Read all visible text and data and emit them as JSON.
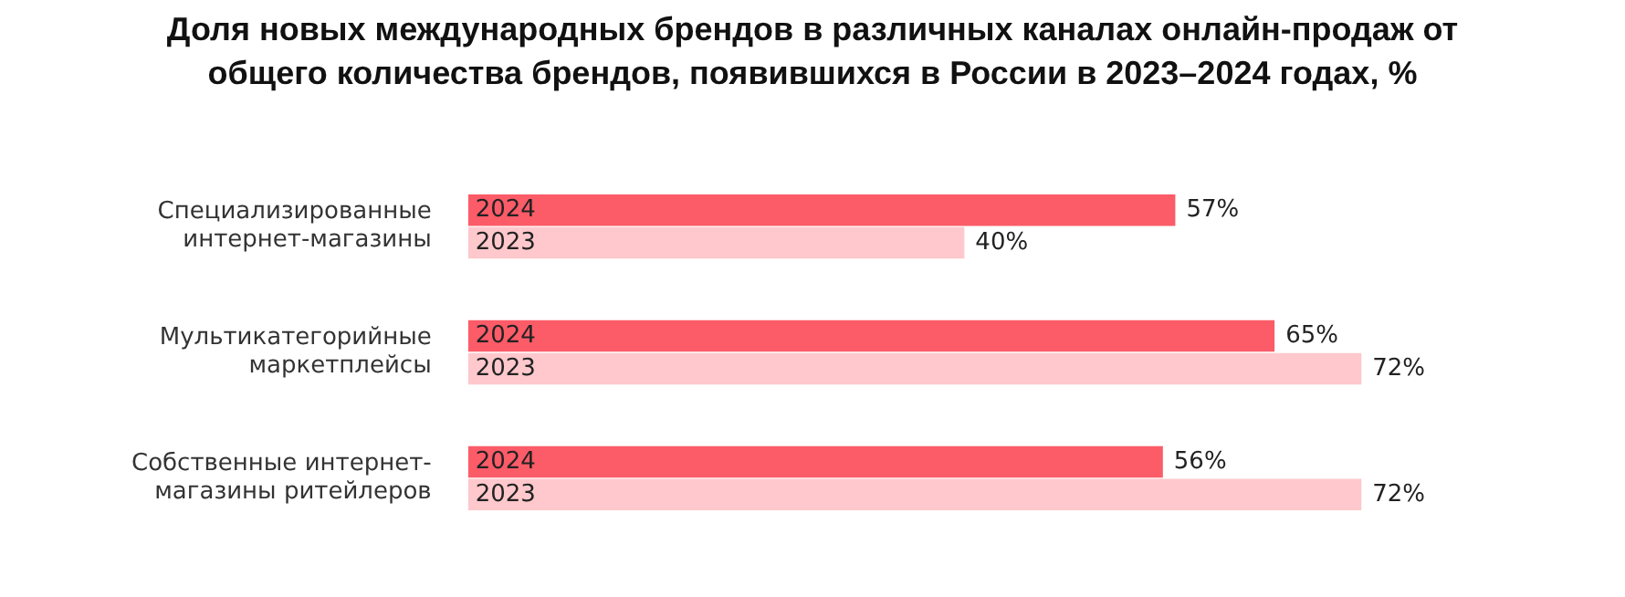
{
  "chart_data": {
    "type": "bar",
    "orientation": "horizontal",
    "title": "Доля новых международных брендов в различных каналах онлайн-продаж от общего количества брендов, появившихся в России в 2023–2024 годах, %",
    "categories": [
      "Специализированные интернет-магазины",
      "Мультикатегорийные маркетплейсы",
      "Собственные интернет-магазины ритейлеров"
    ],
    "series": [
      {
        "name": "2024",
        "color": "#fc5b68",
        "values": [
          57,
          65,
          56
        ],
        "value_labels": [
          "57%",
          "65%",
          "56%"
        ]
      },
      {
        "name": "2023",
        "color": "#fec8cc",
        "values": [
          40,
          72,
          72
        ],
        "value_labels": [
          "40%",
          "72%",
          "72%"
        ]
      }
    ],
    "tick_labels": "y",
    "grid": false,
    "legend": false
  }
}
